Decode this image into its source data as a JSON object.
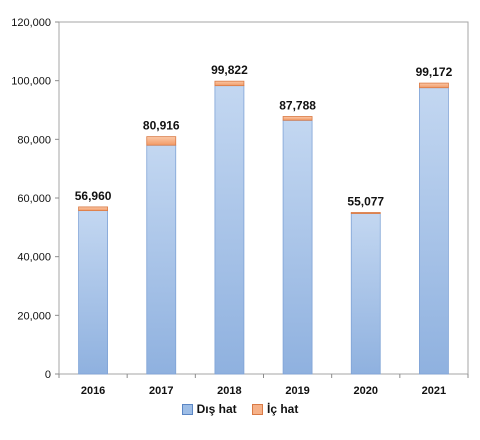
{
  "chart_data": {
    "type": "bar",
    "stacked": true,
    "categories": [
      "2016",
      "2017",
      "2018",
      "2019",
      "2020",
      "2021"
    ],
    "series": [
      {
        "name": "Dış hat",
        "values": [
          55700,
          78000,
          98300,
          86500,
          54700,
          97600
        ],
        "color": "#9dbde6"
      },
      {
        "name": "İç hat",
        "values": [
          1260,
          2916,
          1522,
          1288,
          377,
          1572
        ],
        "color": "#f6b188"
      }
    ],
    "totals": [
      56960,
      80916,
      99822,
      87788,
      55077,
      99172
    ],
    "total_labels": [
      "56,960",
      "80,916",
      "99,822",
      "87,788",
      "55,077",
      "99,172"
    ],
    "ylim": [
      0,
      120000
    ],
    "yticks": [
      0,
      20000,
      40000,
      60000,
      80000,
      100000,
      120000
    ],
    "ytick_labels": [
      "0",
      "20,000",
      "40,000",
      "60,000",
      "80,000",
      "100,000",
      "120,000"
    ],
    "title": "",
    "xlabel": "",
    "ylabel": "",
    "grid": false,
    "legend": "bottom"
  }
}
